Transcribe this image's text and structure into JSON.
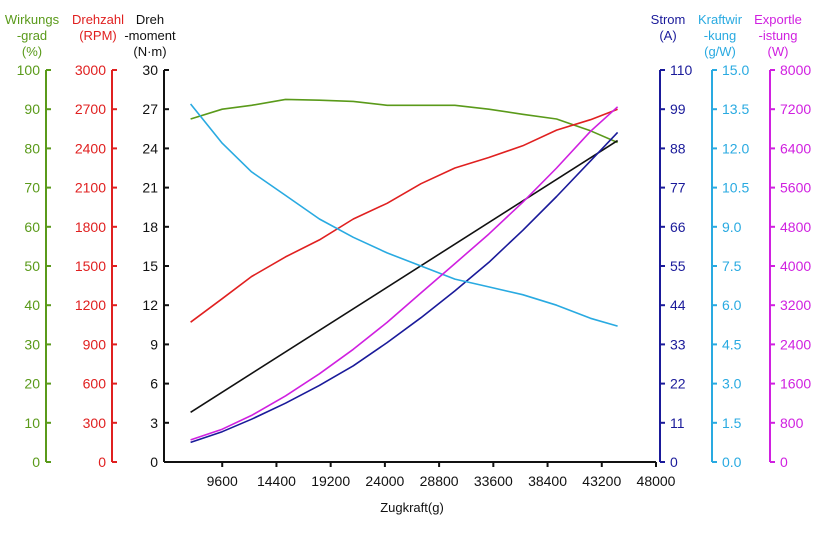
{
  "chart_data": {
    "type": "line",
    "xlabel": "Zugkraft(g)",
    "x_ticks": [
      "9600",
      "14400",
      "19200",
      "24000",
      "28800",
      "33600",
      "38400",
      "43200",
      "48000"
    ],
    "xlim": [
      4800,
      48000
    ],
    "left_axes": [
      {
        "id": "eff",
        "title_lines": [
          "Wirkungs",
          "-grad",
          "(%)"
        ],
        "color": "#5a9a1a",
        "min": 0,
        "max": 100,
        "ticks": [
          "0",
          "10",
          "20",
          "30",
          "40",
          "50",
          "60",
          "70",
          "80",
          "90",
          "100"
        ]
      },
      {
        "id": "rpm",
        "title_lines": [
          "Drehzahl",
          "(RPM)"
        ],
        "color": "#e02020",
        "min": 0,
        "max": 3000,
        "ticks": [
          "0",
          "300",
          "600",
          "900",
          "1200",
          "1500",
          "1800",
          "2100",
          "2400",
          "2700",
          "3000"
        ]
      },
      {
        "id": "torque",
        "title_lines": [
          "Dreh",
          "-moment",
          "(N·m)"
        ],
        "color": "#111111",
        "min": 0,
        "max": 30,
        "ticks": [
          "0",
          "3",
          "6",
          "9",
          "12",
          "15",
          "18",
          "21",
          "24",
          "27",
          "30"
        ]
      }
    ],
    "right_axes": [
      {
        "id": "current",
        "title_lines": [
          "Strom",
          "(A)"
        ],
        "color": "#1a1a9a",
        "min": 0,
        "max": 110,
        "ticks": [
          "0",
          "11",
          "22",
          "33",
          "44",
          "55",
          "66",
          "77",
          "88",
          "99",
          "110"
        ]
      },
      {
        "id": "kw",
        "title_lines": [
          "Kraftwir",
          "-kung",
          "(g/W)"
        ],
        "color": "#29aae1",
        "min": 0,
        "max": 15,
        "ticks": [
          "0.0",
          "1.5",
          "3.0",
          "4.5",
          "6.0",
          "7.5",
          "9.0",
          "10.5",
          "12.0",
          "13.5",
          "15.0"
        ]
      },
      {
        "id": "power",
        "title_lines": [
          "Exportle",
          "-istung",
          "(W)"
        ],
        "color": "#d020e0",
        "min": 0,
        "max": 8000,
        "ticks": [
          "0",
          "800",
          "1600",
          "2400",
          "3200",
          "4000",
          "4800",
          "5600",
          "6400",
          "7200",
          "8000"
        ]
      }
    ],
    "series": [
      {
        "axis": "eff",
        "color": "#5a9a1a",
        "x": [
          6800,
          9600,
          12200,
          15200,
          18200,
          21200,
          24200,
          27200,
          30200,
          33200,
          36200,
          39200,
          42200,
          44600
        ],
        "y": [
          87.5,
          90,
          91,
          92.5,
          92.3,
          92,
          91,
          91,
          91,
          90,
          88.7,
          87.5,
          84.5,
          81.5
        ]
      },
      {
        "axis": "rpm",
        "color": "#e02020",
        "x": [
          6800,
          9600,
          12200,
          15200,
          18200,
          21200,
          24200,
          27200,
          30200,
          33200,
          36200,
          39200,
          42200,
          44600
        ],
        "y": [
          1070,
          1250,
          1420,
          1570,
          1700,
          1860,
          1980,
          2130,
          2250,
          2330,
          2420,
          2540,
          2620,
          2700
        ]
      },
      {
        "axis": "torque",
        "color": "#111111",
        "x": [
          6800,
          44600
        ],
        "y": [
          3.8,
          24.6
        ]
      },
      {
        "axis": "current",
        "color": "#1a1a9a",
        "x": [
          6800,
          9600,
          12200,
          15200,
          18200,
          21200,
          24200,
          27200,
          30200,
          33200,
          36200,
          39200,
          42200,
          44600
        ],
        "y": [
          5.5,
          8.5,
          12,
          16.5,
          21.5,
          27,
          33.5,
          40.5,
          48,
          56,
          65,
          74.5,
          84.5,
          92.5
        ]
      },
      {
        "axis": "kw",
        "color": "#29aae1",
        "x": [
          6800,
          9600,
          12200,
          15200,
          18200,
          21200,
          24200,
          27200,
          30200,
          33200,
          36200,
          39200,
          42200,
          44600
        ],
        "y": [
          13.7,
          12.2,
          11.1,
          10.2,
          9.3,
          8.6,
          8.0,
          7.5,
          7.0,
          6.7,
          6.4,
          6.0,
          5.5,
          5.2
        ]
      },
      {
        "axis": "power",
        "color": "#d020e0",
        "x": [
          6800,
          9600,
          12200,
          15200,
          18200,
          21200,
          24200,
          27200,
          30200,
          33200,
          36200,
          39200,
          42200,
          44600
        ],
        "y": [
          450,
          670,
          950,
          1350,
          1800,
          2300,
          2850,
          3450,
          4050,
          4650,
          5300,
          6000,
          6750,
          7250
        ]
      }
    ]
  }
}
